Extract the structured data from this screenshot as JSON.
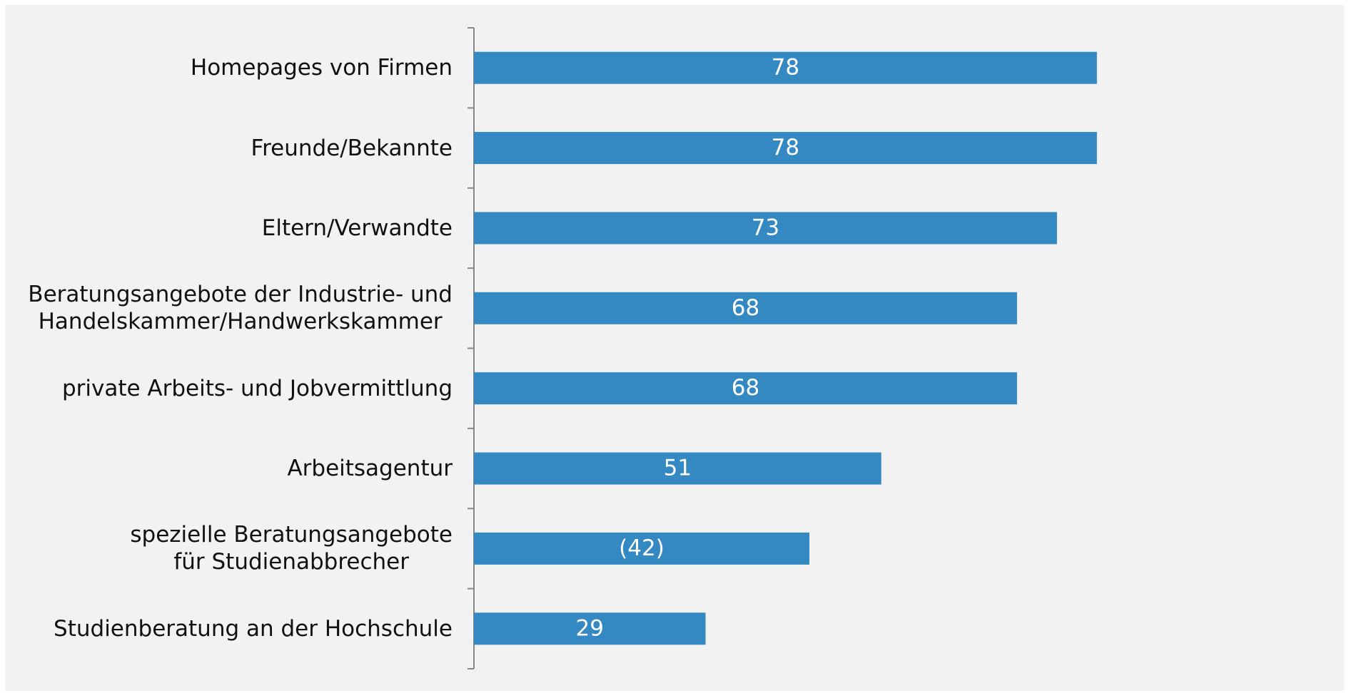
{
  "chart_data": {
    "type": "bar",
    "orientation": "horizontal",
    "categories": [
      "Homepages von Firmen",
      "Freunde/Bekannte",
      "Eltern/Verwandte",
      "Beratungsangebote der Industrie- und\nHandelskammer/Handwerkskammer",
      "private Arbeits- und Jobvermittlung",
      "Arbeitsagentur",
      "spezielle Beratungsangebote\nfür Studienabbrecher",
      "Studienberatung an der Hochschule"
    ],
    "values": [
      78,
      78,
      73,
      68,
      68,
      51,
      42,
      29
    ],
    "value_labels": [
      "78",
      "78",
      "73",
      "68",
      "68",
      "51",
      "(42)",
      "29"
    ],
    "color": "#3589c3",
    "xlim": [
      0,
      100
    ]
  }
}
